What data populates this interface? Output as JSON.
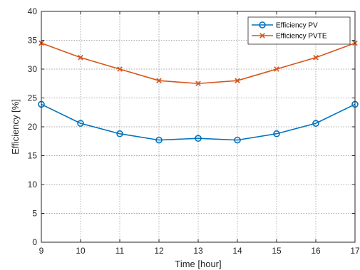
{
  "chart_data": {
    "type": "line",
    "title": "",
    "xlabel": "Time [hour]",
    "ylabel": "Efficiency [%]",
    "xlim": [
      9,
      17
    ],
    "ylim": [
      0,
      40
    ],
    "xticks": [
      "9",
      "10",
      "11",
      "12",
      "13",
      "14",
      "15",
      "16",
      "17"
    ],
    "yticks": [
      "0",
      "5",
      "10",
      "15",
      "20",
      "25",
      "30",
      "35",
      "40"
    ],
    "grid": true,
    "legend_position": "top-right",
    "x": [
      9,
      10,
      11,
      12,
      13,
      14,
      15,
      16,
      17
    ],
    "series": [
      {
        "name": "Efficiency PV",
        "marker": "circle",
        "color": "#0072BD",
        "values": [
          23.9,
          20.6,
          18.8,
          17.7,
          18.0,
          17.7,
          18.8,
          20.6,
          23.9
        ]
      },
      {
        "name": "Efficiency PVTE",
        "marker": "x",
        "color": "#D95319",
        "values": [
          34.5,
          32.0,
          30.0,
          28.0,
          27.5,
          28.0,
          30.0,
          32.0,
          34.5
        ]
      }
    ]
  }
}
